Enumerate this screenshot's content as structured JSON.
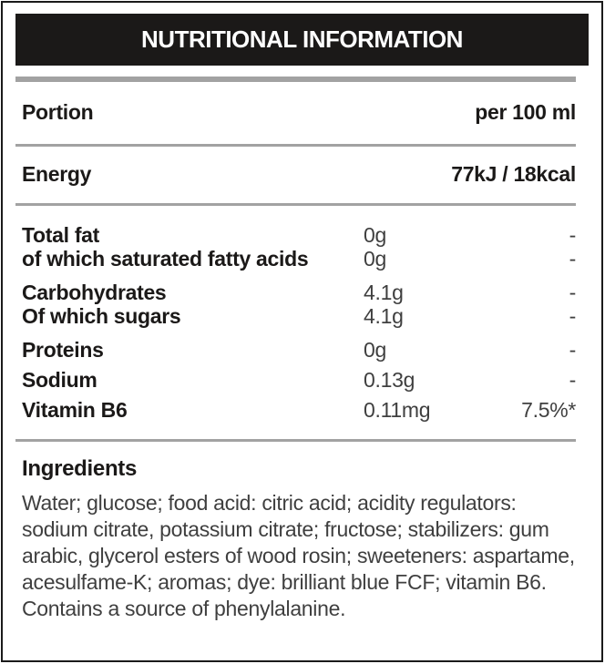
{
  "label": {
    "title": "NUTRITIONAL INFORMATION",
    "portion": {
      "label": "Portion",
      "value": "per 100 ml"
    },
    "energy": {
      "label": "Energy",
      "value": "77kJ / 18kcal"
    },
    "nutrients": [
      {
        "name": "Total fat",
        "amount": "0g",
        "ri": "-"
      },
      {
        "name": "of which saturated fatty acids",
        "amount": "0g",
        "ri": "-"
      },
      {
        "name": "Carbohydrates",
        "amount": "4.1g",
        "ri": "-"
      },
      {
        "name": "Of which sugars",
        "amount": "4.1g",
        "ri": "-"
      },
      {
        "name": "Proteins",
        "amount": "0g",
        "ri": "-"
      },
      {
        "name": "Sodium",
        "amount": "0.13g",
        "ri": "-"
      },
      {
        "name": "Vitamin B6",
        "amount": "0.11mg",
        "ri": "7.5%*"
      }
    ],
    "ingredients": {
      "heading": "Ingredients",
      "text": "Water; glucose; food acid: citric acid; acidity regulators: sodium citrate, potassium citrate; fructose; stabilizers: gum arabic, glycerol esters of wood rosin; sweeteners: aspartame, acesulfame-K; aromas; dye: brilliant blue FCF; vitamin B6. Contains a source of phenylalanine."
    },
    "colors": {
      "title_bar_bg": "#1b1918",
      "title_text": "#ffffff",
      "rule_gray": "#a2a2a2",
      "label_text": "#1b1918",
      "value_text": "#3f3f3f",
      "border": "#1a1a1a"
    }
  }
}
